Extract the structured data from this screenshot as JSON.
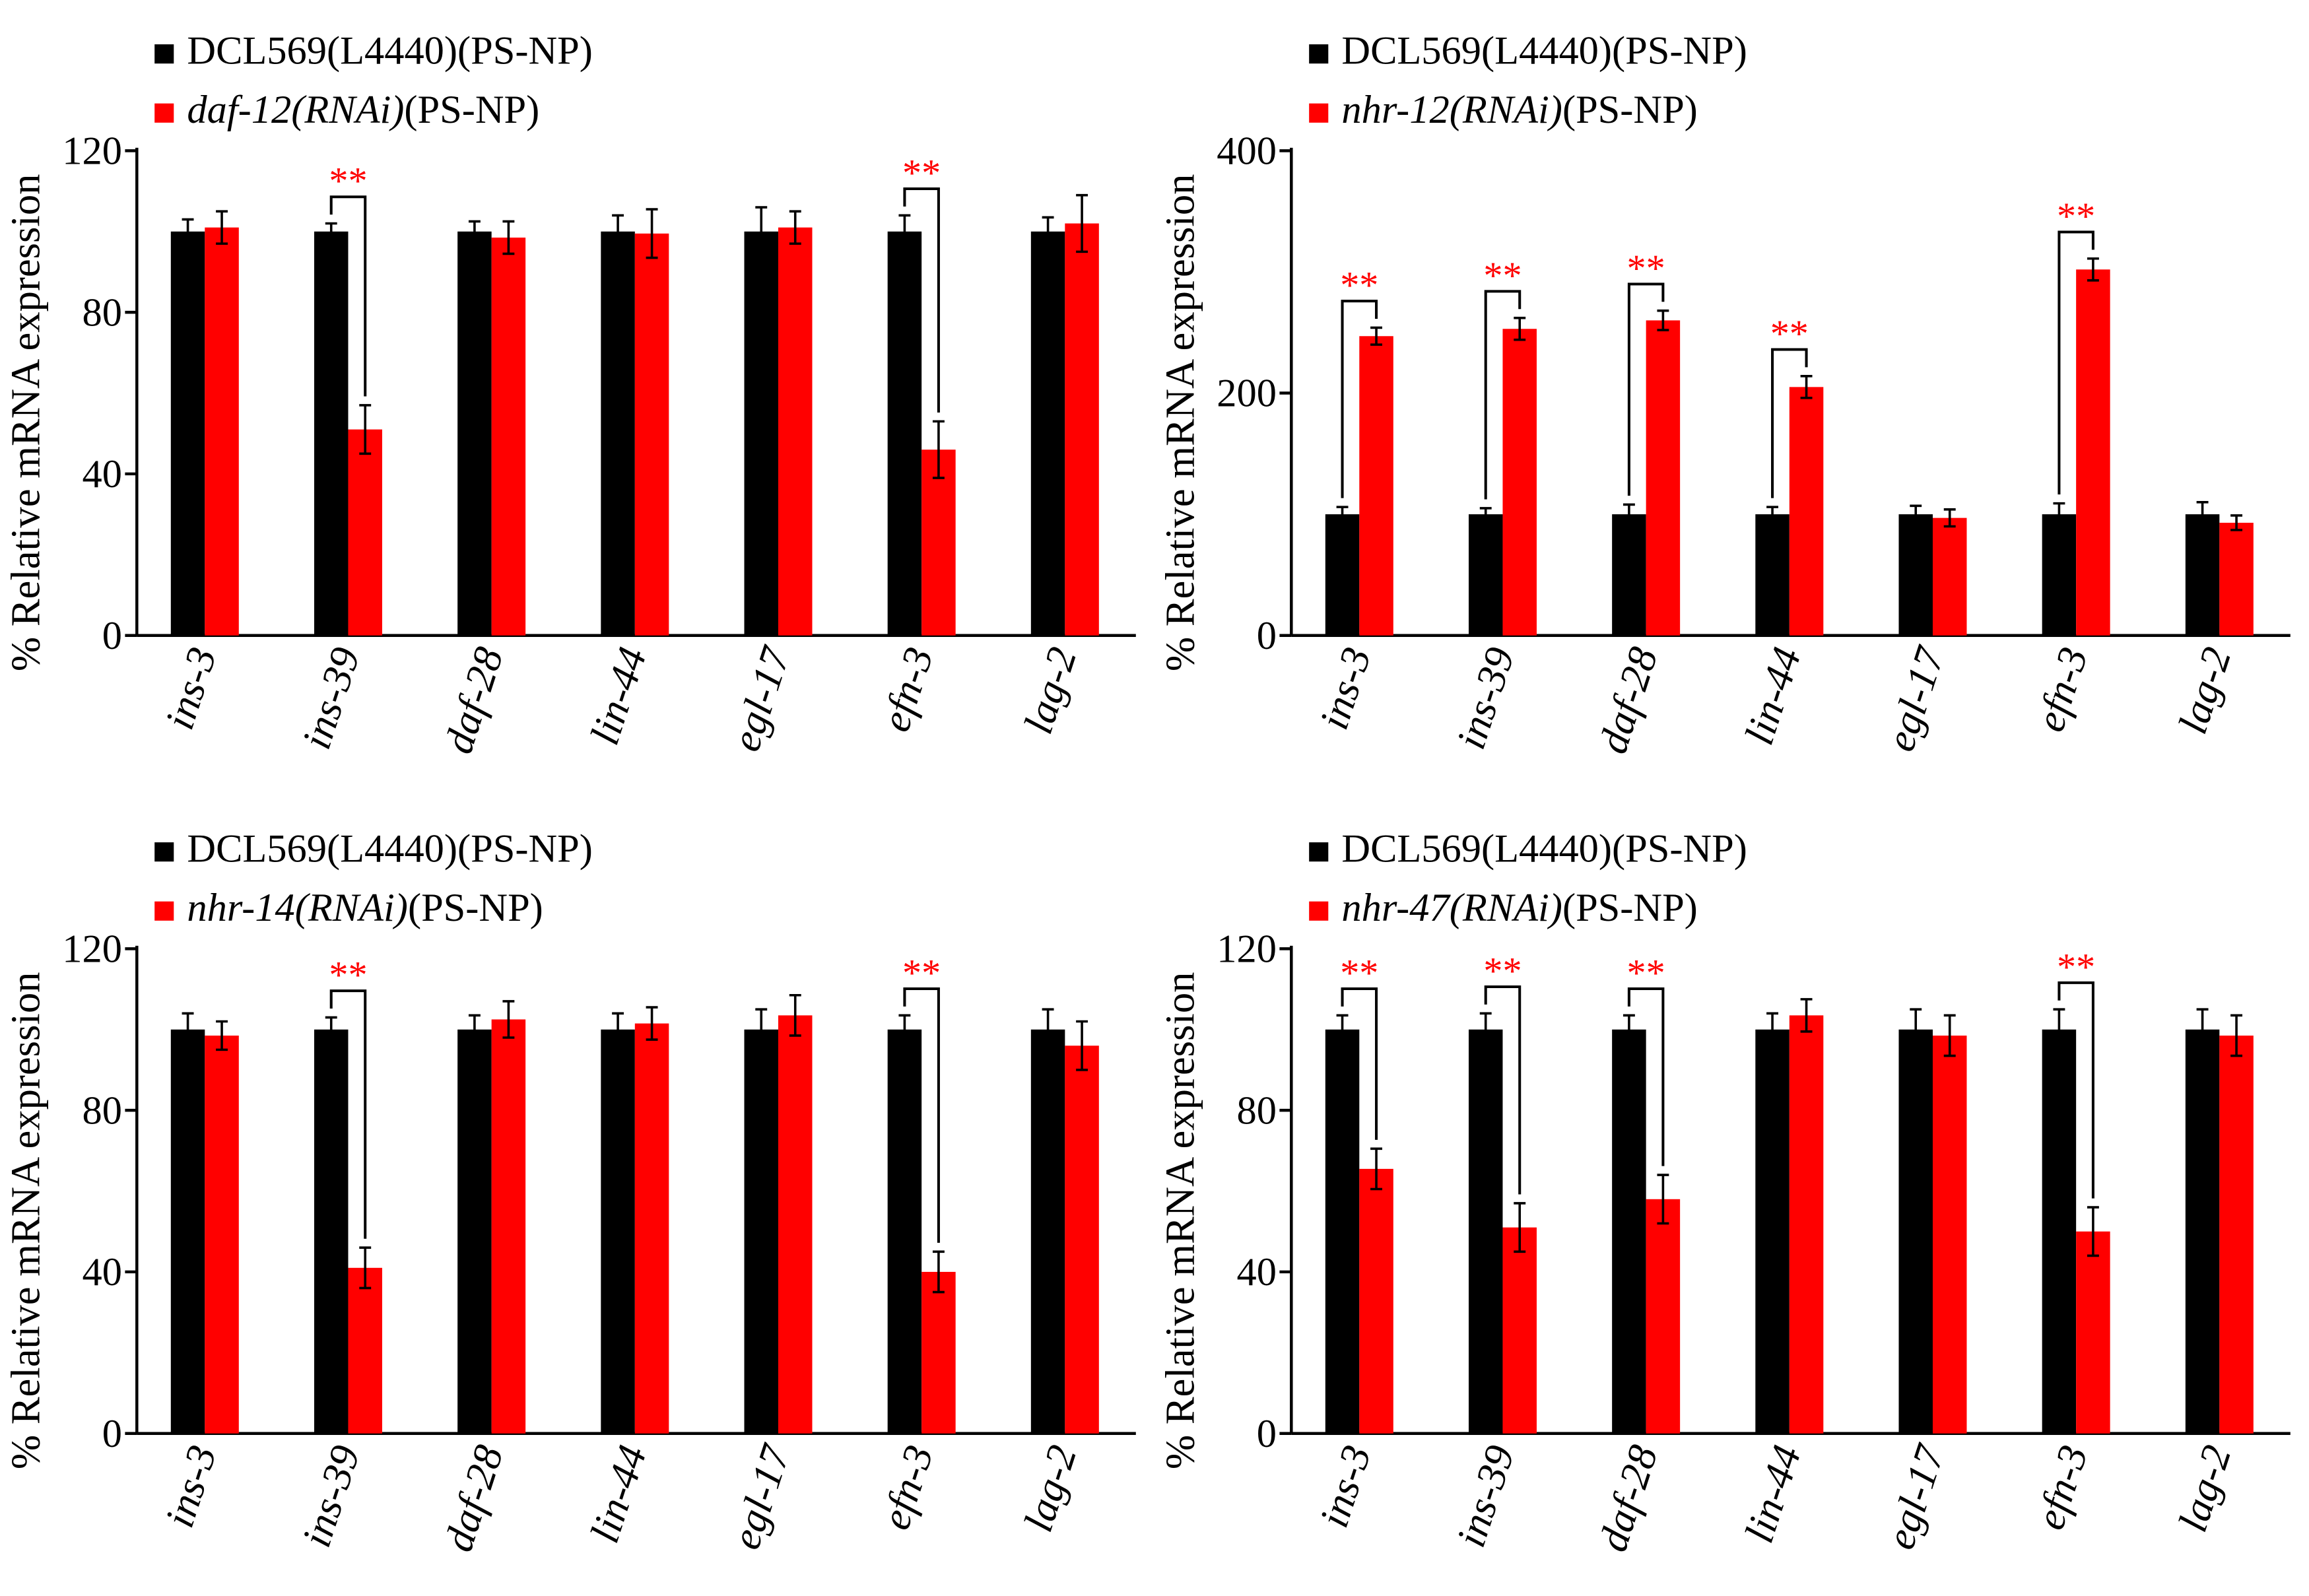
{
  "colors": {
    "control": "#000000",
    "treatment": "#ff0000",
    "axis": "#000000",
    "significance": "#ff0000"
  },
  "ylabel": "% Relative mRNA expression",
  "chart_data": [
    {
      "type": "bar",
      "panel": "top-left",
      "categories": [
        "ins-3",
        "ins-39",
        "daf-28",
        "lin-44",
        "egl-17",
        "efn-3",
        "lag-2"
      ],
      "ylim": [
        0,
        120
      ],
      "yticks": [
        0,
        40,
        80,
        120
      ],
      "ylabel": "% Relative mRNA expression",
      "legend_position": "top-left",
      "series": [
        {
          "name": "DCL569(L4440)(PS-NP)",
          "name_italic": "",
          "name_rest": "DCL569(L4440)(PS-NP)",
          "color": "#000000",
          "values": [
            100,
            100,
            100,
            100,
            100,
            100,
            100
          ],
          "errors": [
            3,
            2,
            2.5,
            4,
            6,
            4,
            3.5
          ]
        },
        {
          "name": "daf-12(RNAi)(PS-NP)",
          "name_italic": "daf-12(RNAi)",
          "name_rest": "(PS-NP)",
          "color": "#ff0000",
          "values": [
            101,
            51,
            98.5,
            99.5,
            101,
            46,
            102
          ],
          "errors": [
            4,
            6,
            4,
            6,
            4,
            7,
            7
          ]
        }
      ],
      "significance": [
        {
          "category": "ins-39",
          "label": "**"
        },
        {
          "category": "efn-3",
          "label": "**"
        }
      ]
    },
    {
      "type": "bar",
      "panel": "top-right",
      "categories": [
        "ins-3",
        "ins-39",
        "daf-28",
        "lin-44",
        "egl-17",
        "efn-3",
        "lag-2"
      ],
      "ylim": [
        0,
        400
      ],
      "yticks": [
        0,
        200,
        400
      ],
      "ylabel": "% Relative mRNA expression",
      "legend_position": "top-left",
      "series": [
        {
          "name": "DCL569(L4440)(PS-NP)",
          "name_italic": "",
          "name_rest": "DCL569(L4440)(PS-NP)",
          "color": "#000000",
          "values": [
            100,
            100,
            100,
            100,
            100,
            100,
            100
          ],
          "errors": [
            6,
            5,
            8,
            6,
            7,
            9,
            10
          ]
        },
        {
          "name": "nhr-12(RNAi)(PS-NP)",
          "name_italic": "nhr-12(RNAi)",
          "name_rest": "(PS-NP)",
          "color": "#ff0000",
          "values": [
            247,
            253,
            260,
            205,
            97,
            302,
            93
          ],
          "errors": [
            7,
            9,
            8,
            9,
            7,
            9,
            6
          ]
        }
      ],
      "significance": [
        {
          "category": "ins-3",
          "label": "**"
        },
        {
          "category": "ins-39",
          "label": "**"
        },
        {
          "category": "daf-28",
          "label": "**"
        },
        {
          "category": "lin-44",
          "label": "**"
        },
        {
          "category": "efn-3",
          "label": "**"
        }
      ]
    },
    {
      "type": "bar",
      "panel": "bottom-left",
      "categories": [
        "ins-3",
        "ins-39",
        "daf-28",
        "lin-44",
        "egl-17",
        "efn-3",
        "lag-2"
      ],
      "ylim": [
        0,
        120
      ],
      "yticks": [
        0,
        40,
        80,
        120
      ],
      "ylabel": "% Relative mRNA expression",
      "legend_position": "top-left",
      "series": [
        {
          "name": "DCL569(L4440)(PS-NP)",
          "name_italic": "",
          "name_rest": "DCL569(L4440)(PS-NP)",
          "color": "#000000",
          "values": [
            100,
            100,
            100,
            100,
            100,
            100,
            100
          ],
          "errors": [
            4,
            3,
            3.5,
            4,
            5,
            3.5,
            5
          ]
        },
        {
          "name": "nhr-14(RNAi)(PS-NP)",
          "name_italic": "nhr-14(RNAi)",
          "name_rest": "(PS-NP)",
          "color": "#ff0000",
          "values": [
            98.5,
            41,
            102.5,
            101.5,
            103.5,
            40,
            96
          ],
          "errors": [
            3.5,
            5,
            4.5,
            4,
            5,
            5,
            6
          ]
        }
      ],
      "significance": [
        {
          "category": "ins-39",
          "label": "**"
        },
        {
          "category": "efn-3",
          "label": "**"
        }
      ]
    },
    {
      "type": "bar",
      "panel": "bottom-right",
      "categories": [
        "ins-3",
        "ins-39",
        "daf-28",
        "lin-44",
        "egl-17",
        "efn-3",
        "lag-2"
      ],
      "ylim": [
        0,
        120
      ],
      "yticks": [
        0,
        40,
        80,
        120
      ],
      "ylabel": "% Relative mRNA expression",
      "legend_position": "top-left",
      "series": [
        {
          "name": "DCL569(L4440)(PS-NP)",
          "name_italic": "",
          "name_rest": "DCL569(L4440)(PS-NP)",
          "color": "#000000",
          "values": [
            100,
            100,
            100,
            100,
            100,
            100,
            100
          ],
          "errors": [
            3.5,
            4,
            3.5,
            4,
            5,
            5,
            5
          ]
        },
        {
          "name": "nhr-47(RNAi)(PS-NP)",
          "name_italic": "nhr-47(RNAi)",
          "name_rest": "(PS-NP)",
          "color": "#ff0000",
          "values": [
            65.5,
            51,
            58,
            103.5,
            98.5,
            50,
            98.5
          ],
          "errors": [
            5,
            6,
            6,
            4,
            5,
            6,
            5
          ]
        }
      ],
      "significance": [
        {
          "category": "ins-3",
          "label": "**"
        },
        {
          "category": "ins-39",
          "label": "**"
        },
        {
          "category": "daf-28",
          "label": "**"
        },
        {
          "category": "efn-3",
          "label": "**"
        }
      ]
    }
  ]
}
